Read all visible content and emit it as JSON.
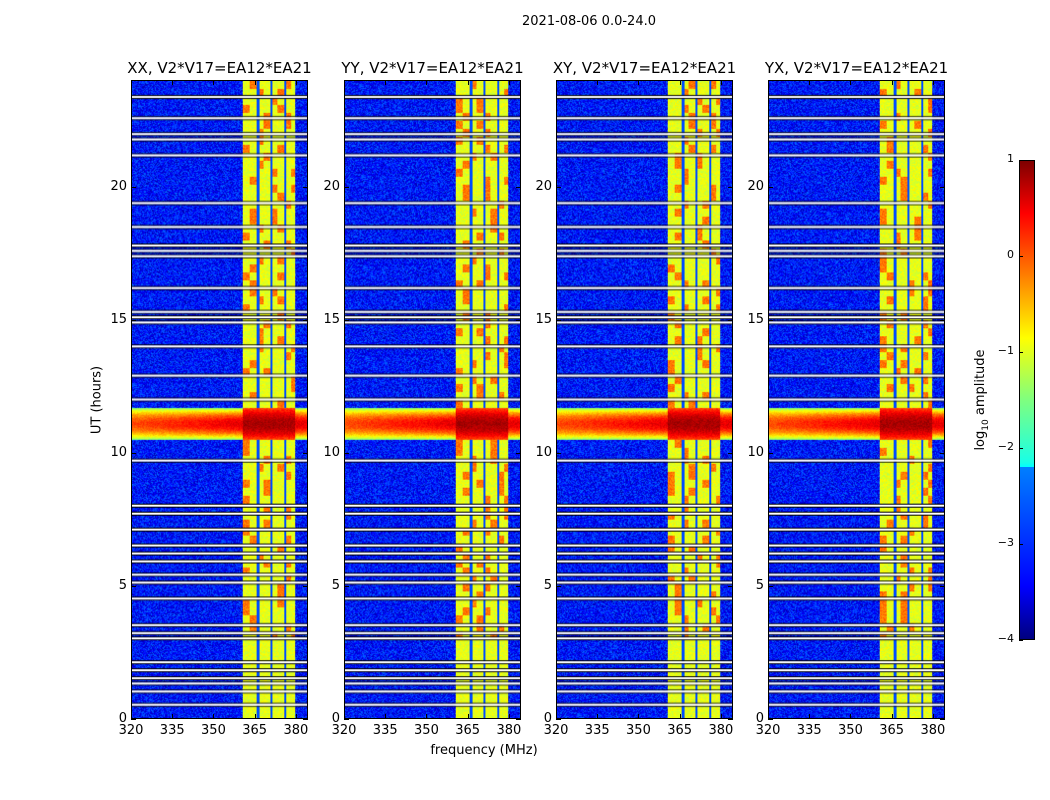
{
  "figure": {
    "suptitle": "2021-08-06 0.0-24.0",
    "ylabel": "UT (hours)",
    "xlabel": "frequency (MHz)"
  },
  "chart_data": {
    "type": "heatmap",
    "panels": [
      {
        "title": "XX, V2*V17=EA12*EA21"
      },
      {
        "title": "YY, V2*V17=EA12*EA21"
      },
      {
        "title": "XY, V2*V17=EA12*EA21"
      },
      {
        "title": "YX, V2*V17=EA12*EA21"
      }
    ],
    "x": {
      "label": "frequency (MHz)",
      "lim": [
        320,
        384.4
      ],
      "ticks": [
        320,
        335,
        350,
        365,
        380
      ],
      "tick_labels": [
        "320",
        "335",
        "350",
        "365",
        "380"
      ]
    },
    "y": {
      "label": "UT (hours)",
      "lim": [
        0,
        24
      ],
      "ticks": [
        0,
        5,
        10,
        15,
        20
      ],
      "tick_labels": [
        "0",
        "5",
        "10",
        "15",
        "20"
      ]
    },
    "colorbar": {
      "label_main": "log",
      "label_sub": "10",
      "label_rest": " amplitude",
      "colormap": "jet",
      "lim": [
        -4,
        1
      ],
      "ticks": [
        1,
        0,
        -1,
        -2,
        -3,
        -4
      ],
      "tick_labels": [
        "1",
        "0",
        "−1",
        "−2",
        "−3",
        "−4"
      ]
    },
    "background_level": -3.3,
    "bright_band_mhz": [
      360.7,
      380
    ],
    "bright_band_level": -1.0,
    "band_gaps_mhz": [
      366.2,
      371.2,
      376.2
    ],
    "rfi_event_hours": [
      10.5,
      11.7
    ],
    "rfi_level": 0.8,
    "flagged_hours": [
      23.4,
      22.6,
      22.0,
      21.8,
      21.2,
      19.4,
      18.5,
      17.8,
      17.6,
      17.4,
      16.2,
      15.3,
      15.1,
      14.9,
      14.0,
      12.9,
      12.0,
      9.7,
      8.0,
      7.7,
      7.1,
      6.5,
      6.2,
      5.9,
      5.4,
      5.1,
      4.5,
      3.5,
      3.2,
      3.0,
      2.1,
      1.8,
      1.5,
      1.3,
      1.0,
      0.5
    ]
  }
}
